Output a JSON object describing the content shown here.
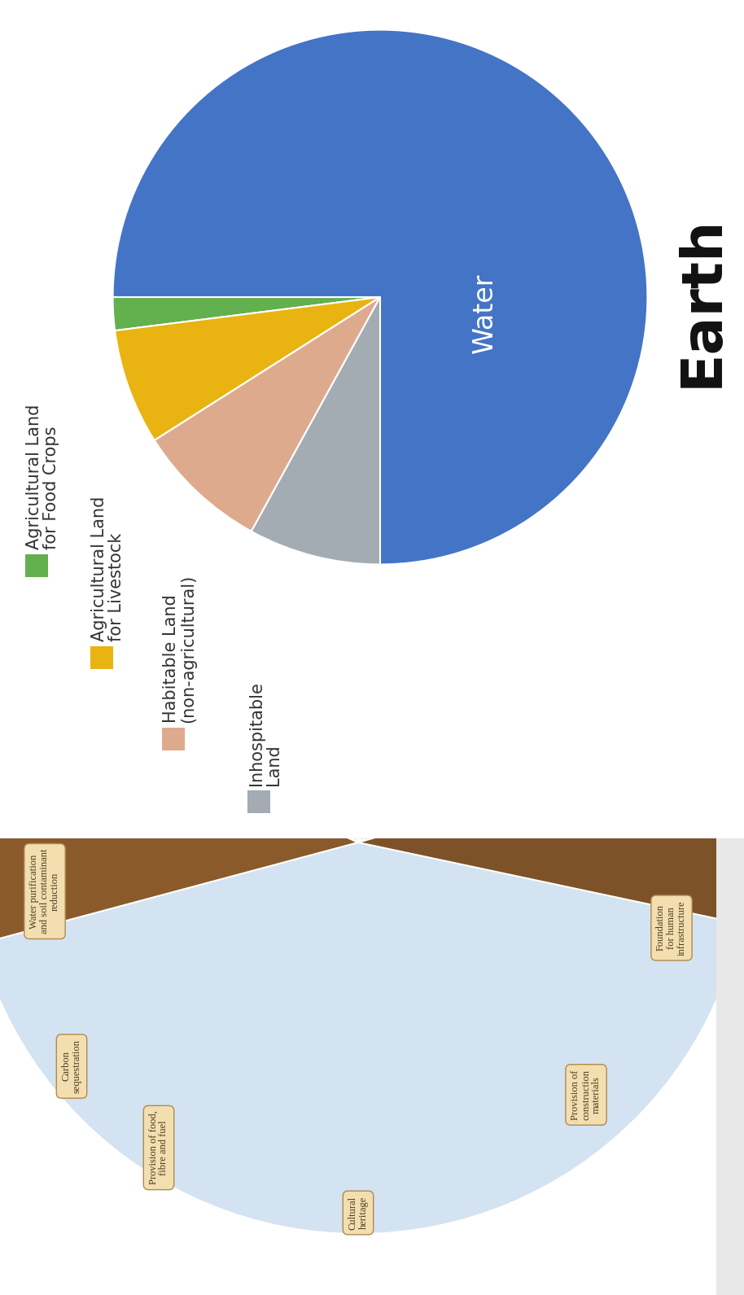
{
  "chart_data": {
    "type": "pie",
    "title": "Earth",
    "categories": [
      "Agricultural Land\nfor Food Crops",
      "Agricultural Land\nfor Livestock",
      "Habitable Land\n(non-agricultural)",
      "Inhospitable\nLand",
      "Water"
    ],
    "values": [
      2,
      7,
      8,
      8,
      75
    ],
    "colors": [
      "#62b04e",
      "#e9b412",
      "#deaa8e",
      "#a3abb3",
      "#4474c6"
    ],
    "slice_labels": [
      null,
      null,
      null,
      null,
      "Water"
    ],
    "legend": "upper left"
  },
  "diagram": {
    "labels": [
      "Water purification\nand soil contaminant\nreduction",
      "Carbon\nsequestration",
      "Provision of food,\nfibre and fuel",
      "Cultural\nheritage",
      "Provision of\nconstruction\nmaterials",
      "Foundation\nfor human\ninfrastructure"
    ]
  }
}
